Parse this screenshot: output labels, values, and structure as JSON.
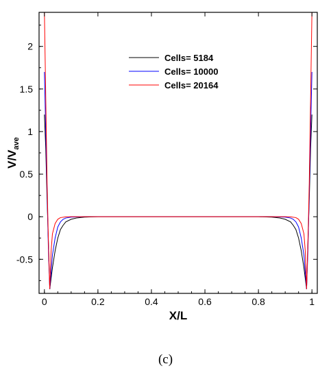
{
  "chart_data": {
    "type": "line",
    "xlabel": "X/L",
    "ylabel_main": "V/V",
    "ylabel_sub": "ave",
    "xlim": [
      -0.02,
      1.02
    ],
    "ylim": [
      -0.9,
      2.4
    ],
    "x_ticks": [
      "0",
      "0.2",
      "0.4",
      "0.6",
      "0.8",
      "1"
    ],
    "x_tick_values": [
      0,
      0.2,
      0.4,
      0.6,
      0.8,
      1
    ],
    "y_ticks": [
      "-0.5",
      "0",
      "0.5",
      "1",
      "1.5",
      "2"
    ],
    "y_tick_values": [
      -0.5,
      0,
      0.5,
      1,
      1.5,
      2
    ],
    "legend_position": "top-center",
    "series": [
      {
        "name": "Cells= 5184",
        "color": "#000000",
        "x": [
          0.0,
          0.005,
          0.01,
          0.015,
          0.02,
          0.03,
          0.04,
          0.05,
          0.06,
          0.07,
          0.08,
          0.1,
          0.12,
          0.15,
          0.2,
          0.5,
          0.8,
          0.85,
          0.88,
          0.9,
          0.92,
          0.93,
          0.94,
          0.95,
          0.96,
          0.97,
          0.98,
          0.985,
          0.99,
          0.995,
          1.0
        ],
        "y": [
          1.2,
          0.8,
          0.2,
          -0.3,
          -0.85,
          -0.6,
          -0.4,
          -0.25,
          -0.15,
          -0.1,
          -0.06,
          -0.03,
          -0.015,
          -0.005,
          0.0,
          0.0,
          0.0,
          -0.005,
          -0.015,
          -0.03,
          -0.06,
          -0.1,
          -0.15,
          -0.25,
          -0.4,
          -0.6,
          -0.85,
          -0.3,
          0.2,
          0.8,
          1.2
        ]
      },
      {
        "name": "Cells= 10000",
        "color": "#0000ff",
        "x": [
          0.0,
          0.005,
          0.01,
          0.015,
          0.02,
          0.03,
          0.04,
          0.05,
          0.06,
          0.07,
          0.08,
          0.1,
          0.15,
          0.5,
          0.85,
          0.9,
          0.92,
          0.93,
          0.94,
          0.95,
          0.96,
          0.97,
          0.98,
          0.985,
          0.99,
          0.995,
          1.0
        ],
        "y": [
          1.7,
          1.0,
          0.3,
          -0.4,
          -0.85,
          -0.45,
          -0.25,
          -0.12,
          -0.06,
          -0.03,
          -0.015,
          -0.005,
          0.0,
          0.0,
          0.0,
          -0.005,
          -0.015,
          -0.03,
          -0.06,
          -0.12,
          -0.25,
          -0.45,
          -0.85,
          -0.4,
          0.3,
          1.0,
          1.7
        ]
      },
      {
        "name": "Cells= 20164",
        "color": "#ff0000",
        "x": [
          0.0,
          0.005,
          0.01,
          0.015,
          0.02,
          0.025,
          0.03,
          0.04,
          0.05,
          0.06,
          0.08,
          0.1,
          0.5,
          0.9,
          0.92,
          0.94,
          0.95,
          0.96,
          0.97,
          0.975,
          0.98,
          0.985,
          0.99,
          0.995,
          1.0
        ],
        "y": [
          2.4,
          1.4,
          0.4,
          -0.3,
          -0.85,
          -0.4,
          -0.2,
          -0.08,
          -0.03,
          -0.01,
          -0.002,
          0.0,
          0.0,
          0.0,
          -0.002,
          -0.01,
          -0.03,
          -0.08,
          -0.2,
          -0.4,
          -0.85,
          -0.3,
          0.4,
          1.4,
          2.4
        ]
      }
    ]
  },
  "caption": "(c)"
}
